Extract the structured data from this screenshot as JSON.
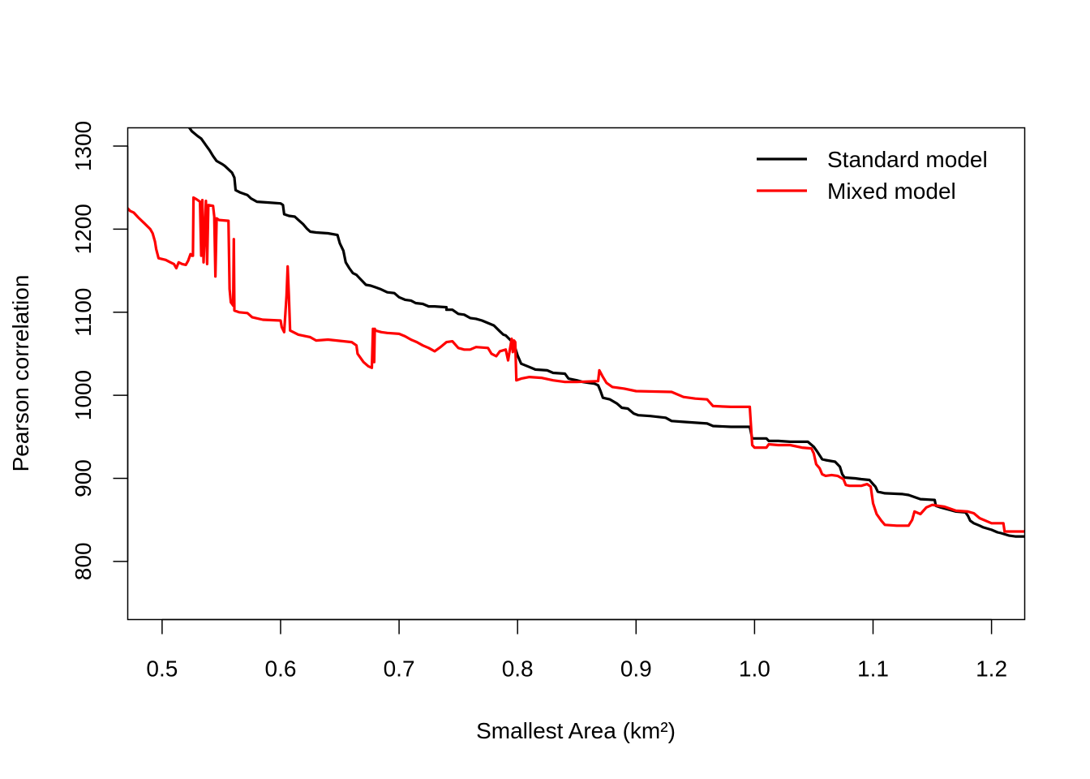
{
  "chart_data": {
    "type": "line",
    "title": "",
    "xlabel": "Smallest Area (km²)",
    "ylabel": "Pearson correlation",
    "xlim": [
      0.471,
      1.228
    ],
    "ylim": [
      730,
      1322
    ],
    "grid": false,
    "legend_position": "top-right",
    "x_ticks": [
      {
        "value": 0.5,
        "label": "0.5"
      },
      {
        "value": 0.6,
        "label": "0.6"
      },
      {
        "value": 0.7,
        "label": "0.7"
      },
      {
        "value": 0.8,
        "label": "0.8"
      },
      {
        "value": 0.9,
        "label": "0.9"
      },
      {
        "value": 1.0,
        "label": "1.0"
      },
      {
        "value": 1.1,
        "label": "1.1"
      },
      {
        "value": 1.2,
        "label": "1.2"
      }
    ],
    "y_ticks": [
      {
        "value": 800,
        "label": "800"
      },
      {
        "value": 900,
        "label": "900"
      },
      {
        "value": 1000,
        "label": "1000"
      },
      {
        "value": 1100,
        "label": "1100"
      },
      {
        "value": 1200,
        "label": "1200"
      },
      {
        "value": 1300,
        "label": "1300"
      }
    ],
    "series": [
      {
        "name": "Standard model",
        "color": "#000000",
        "points": [
          [
            0.523,
            1322
          ],
          [
            0.525,
            1318
          ],
          [
            0.53,
            1312
          ],
          [
            0.533,
            1309
          ],
          [
            0.537,
            1301
          ],
          [
            0.54,
            1295
          ],
          [
            0.543,
            1288
          ],
          [
            0.546,
            1282
          ],
          [
            0.551,
            1278
          ],
          [
            0.553,
            1276
          ],
          [
            0.556,
            1272
          ],
          [
            0.559,
            1268
          ],
          [
            0.561,
            1262
          ],
          [
            0.562,
            1247
          ],
          [
            0.566,
            1244
          ],
          [
            0.572,
            1241
          ],
          [
            0.575,
            1237
          ],
          [
            0.58,
            1233
          ],
          [
            0.59,
            1232
          ],
          [
            0.6,
            1231
          ],
          [
            0.602,
            1229
          ],
          [
            0.603,
            1218
          ],
          [
            0.607,
            1216
          ],
          [
            0.612,
            1215
          ],
          [
            0.615,
            1211
          ],
          [
            0.619,
            1206
          ],
          [
            0.622,
            1201
          ],
          [
            0.625,
            1197
          ],
          [
            0.63,
            1196
          ],
          [
            0.64,
            1195
          ],
          [
            0.64,
            1195
          ],
          [
            0.648,
            1193
          ],
          [
            0.65,
            1183
          ],
          [
            0.653,
            1174
          ],
          [
            0.655,
            1160
          ],
          [
            0.658,
            1153
          ],
          [
            0.661,
            1147
          ],
          [
            0.664,
            1145
          ],
          [
            0.666,
            1142
          ],
          [
            0.67,
            1136
          ],
          [
            0.672,
            1133
          ],
          [
            0.676,
            1132
          ],
          [
            0.68,
            1130
          ],
          [
            0.684,
            1128
          ],
          [
            0.69,
            1124
          ],
          [
            0.696,
            1123
          ],
          [
            0.7,
            1118
          ],
          [
            0.705,
            1115
          ],
          [
            0.71,
            1114
          ],
          [
            0.714,
            1111
          ],
          [
            0.72,
            1110
          ],
          [
            0.725,
            1107
          ],
          [
            0.73,
            1107
          ],
          [
            0.74,
            1106
          ],
          [
            0.74,
            1103
          ],
          [
            0.745,
            1103
          ],
          [
            0.75,
            1098
          ],
          [
            0.755,
            1097
          ],
          [
            0.76,
            1093
          ],
          [
            0.765,
            1092
          ],
          [
            0.77,
            1090
          ],
          [
            0.78,
            1084
          ],
          [
            0.785,
            1077
          ],
          [
            0.788,
            1073
          ],
          [
            0.79,
            1072
          ],
          [
            0.795,
            1065
          ],
          [
            0.798,
            1057
          ],
          [
            0.8,
            1048
          ],
          [
            0.803,
            1038
          ],
          [
            0.81,
            1034
          ],
          [
            0.815,
            1031
          ],
          [
            0.825,
            1030
          ],
          [
            0.83,
            1027
          ],
          [
            0.84,
            1026
          ],
          [
            0.843,
            1020
          ],
          [
            0.85,
            1018
          ],
          [
            0.855,
            1016
          ],
          [
            0.86,
            1015
          ],
          [
            0.865,
            1014
          ],
          [
            0.868,
            1012
          ],
          [
            0.87,
            1005
          ],
          [
            0.872,
            997
          ],
          [
            0.878,
            995
          ],
          [
            0.884,
            990
          ],
          [
            0.888,
            985
          ],
          [
            0.893,
            984
          ],
          [
            0.898,
            978
          ],
          [
            0.902,
            976
          ],
          [
            0.912,
            975
          ],
          [
            0.925,
            973
          ],
          [
            0.93,
            969
          ],
          [
            0.94,
            968
          ],
          [
            0.95,
            967
          ],
          [
            0.96,
            966
          ],
          [
            0.965,
            963
          ],
          [
            0.98,
            962
          ],
          [
            0.996,
            962
          ],
          [
            0.998,
            948
          ],
          [
            1.01,
            948
          ],
          [
            1.012,
            945
          ],
          [
            1.02,
            945
          ],
          [
            1.03,
            944
          ],
          [
            1.045,
            944
          ],
          [
            1.05,
            938
          ],
          [
            1.053,
            932
          ],
          [
            1.057,
            923
          ],
          [
            1.06,
            922
          ],
          [
            1.068,
            920
          ],
          [
            1.072,
            914
          ],
          [
            1.074,
            905
          ],
          [
            1.076,
            901
          ],
          [
            1.085,
            900
          ],
          [
            1.09,
            899
          ],
          [
            1.097,
            898
          ],
          [
            1.1,
            893
          ],
          [
            1.102,
            890
          ],
          [
            1.104,
            884
          ],
          [
            1.11,
            882
          ],
          [
            1.125,
            881
          ],
          [
            1.13,
            880
          ],
          [
            1.14,
            875
          ],
          [
            1.152,
            874
          ],
          [
            1.153,
            867
          ],
          [
            1.157,
            865
          ],
          [
            1.165,
            862
          ],
          [
            1.17,
            860
          ],
          [
            1.178,
            859
          ],
          [
            1.18,
            855
          ],
          [
            1.182,
            849
          ],
          [
            1.185,
            846
          ],
          [
            1.19,
            843
          ],
          [
            1.193,
            841
          ],
          [
            1.2,
            838
          ],
          [
            1.205,
            835
          ],
          [
            1.208,
            834
          ],
          [
            1.215,
            831
          ],
          [
            1.22,
            830
          ],
          [
            1.228,
            830
          ]
        ]
      },
      {
        "name": "Mixed model",
        "color": "#ff0000",
        "points": [
          [
            0.471,
            1225
          ],
          [
            0.473,
            1222
          ],
          [
            0.476,
            1220
          ],
          [
            0.48,
            1214
          ],
          [
            0.485,
            1207
          ],
          [
            0.49,
            1200
          ],
          [
            0.492,
            1195
          ],
          [
            0.494,
            1185
          ],
          [
            0.495,
            1176
          ],
          [
            0.497,
            1165
          ],
          [
            0.503,
            1163
          ],
          [
            0.507,
            1160
          ],
          [
            0.51,
            1158
          ],
          [
            0.512,
            1153
          ],
          [
            0.514,
            1160
          ],
          [
            0.517,
            1158
          ],
          [
            0.52,
            1157
          ],
          [
            0.522,
            1162
          ],
          [
            0.524,
            1170
          ],
          [
            0.525,
            1168
          ],
          [
            0.526,
            1168
          ],
          [
            0.5265,
            1238
          ],
          [
            0.529,
            1236
          ],
          [
            0.532,
            1233
          ],
          [
            0.533,
            1168
          ],
          [
            0.534,
            1235
          ],
          [
            0.535,
            1160
          ],
          [
            0.537,
            1234
          ],
          [
            0.538,
            1158
          ],
          [
            0.539,
            1229
          ],
          [
            0.543,
            1228
          ],
          [
            0.544,
            1215
          ],
          [
            0.545,
            1143
          ],
          [
            0.546,
            1213
          ],
          [
            0.548,
            1211
          ],
          [
            0.556,
            1210
          ],
          [
            0.557,
            1128
          ],
          [
            0.558,
            1112
          ],
          [
            0.559,
            1110
          ],
          [
            0.56,
            1108
          ],
          [
            0.5605,
            1188
          ],
          [
            0.561,
            1102
          ],
          [
            0.565,
            1100
          ],
          [
            0.572,
            1099
          ],
          [
            0.576,
            1094
          ],
          [
            0.585,
            1091
          ],
          [
            0.6,
            1090
          ],
          [
            0.601,
            1082
          ],
          [
            0.603,
            1076
          ],
          [
            0.605,
            1120
          ],
          [
            0.606,
            1155
          ],
          [
            0.607,
            1120
          ],
          [
            0.608,
            1078
          ],
          [
            0.615,
            1073
          ],
          [
            0.625,
            1070
          ],
          [
            0.63,
            1066
          ],
          [
            0.64,
            1067
          ],
          [
            0.66,
            1064
          ],
          [
            0.664,
            1060
          ],
          [
            0.665,
            1050
          ],
          [
            0.67,
            1040
          ],
          [
            0.674,
            1035
          ],
          [
            0.677,
            1033
          ],
          [
            0.678,
            1080
          ],
          [
            0.679,
            1040
          ],
          [
            0.6795,
            1080
          ],
          [
            0.68,
            1078
          ],
          [
            0.685,
            1076
          ],
          [
            0.69,
            1075
          ],
          [
            0.7,
            1074
          ],
          [
            0.705,
            1071
          ],
          [
            0.71,
            1067
          ],
          [
            0.715,
            1064
          ],
          [
            0.72,
            1060
          ],
          [
            0.725,
            1057
          ],
          [
            0.73,
            1053
          ],
          [
            0.735,
            1058
          ],
          [
            0.74,
            1064
          ],
          [
            0.745,
            1065
          ],
          [
            0.75,
            1057
          ],
          [
            0.755,
            1055
          ],
          [
            0.76,
            1055
          ],
          [
            0.765,
            1058
          ],
          [
            0.775,
            1057
          ],
          [
            0.778,
            1050
          ],
          [
            0.782,
            1047
          ],
          [
            0.785,
            1053
          ],
          [
            0.79,
            1055
          ],
          [
            0.792,
            1042
          ],
          [
            0.795,
            1068
          ],
          [
            0.796,
            1052
          ],
          [
            0.797,
            1066
          ],
          [
            0.798,
            1064
          ],
          [
            0.799,
            1018
          ],
          [
            0.803,
            1020
          ],
          [
            0.81,
            1022
          ],
          [
            0.82,
            1021
          ],
          [
            0.83,
            1018
          ],
          [
            0.84,
            1016
          ],
          [
            0.85,
            1016
          ],
          [
            0.868,
            1017
          ],
          [
            0.869,
            1030
          ],
          [
            0.872,
            1022
          ],
          [
            0.875,
            1015
          ],
          [
            0.88,
            1010
          ],
          [
            0.89,
            1008
          ],
          [
            0.9,
            1005
          ],
          [
            0.93,
            1004
          ],
          [
            0.94,
            998
          ],
          [
            0.95,
            996
          ],
          [
            0.96,
            995
          ],
          [
            0.965,
            987
          ],
          [
            0.98,
            986
          ],
          [
            0.996,
            986
          ],
          [
            0.998,
            940
          ],
          [
            1.0,
            937
          ],
          [
            1.01,
            937
          ],
          [
            1.012,
            941
          ],
          [
            1.02,
            940
          ],
          [
            1.03,
            940
          ],
          [
            1.04,
            937
          ],
          [
            1.048,
            936
          ],
          [
            1.05,
            930
          ],
          [
            1.052,
            917
          ],
          [
            1.055,
            912
          ],
          [
            1.057,
            905
          ],
          [
            1.06,
            903
          ],
          [
            1.065,
            904
          ],
          [
            1.07,
            903
          ],
          [
            1.075,
            899
          ],
          [
            1.077,
            892
          ],
          [
            1.08,
            891
          ],
          [
            1.09,
            891
          ],
          [
            1.095,
            893
          ],
          [
            1.098,
            890
          ],
          [
            1.1,
            870
          ],
          [
            1.103,
            857
          ],
          [
            1.107,
            849
          ],
          [
            1.11,
            844
          ],
          [
            1.12,
            843
          ],
          [
            1.13,
            843
          ],
          [
            1.133,
            850
          ],
          [
            1.135,
            860
          ],
          [
            1.14,
            857
          ],
          [
            1.145,
            865
          ],
          [
            1.15,
            868
          ],
          [
            1.155,
            867
          ],
          [
            1.16,
            866
          ],
          [
            1.17,
            861
          ],
          [
            1.18,
            860
          ],
          [
            1.185,
            858
          ],
          [
            1.19,
            852
          ],
          [
            1.2,
            846
          ],
          [
            1.21,
            846
          ],
          [
            1.211,
            836
          ],
          [
            1.228,
            836
          ]
        ]
      }
    ]
  }
}
